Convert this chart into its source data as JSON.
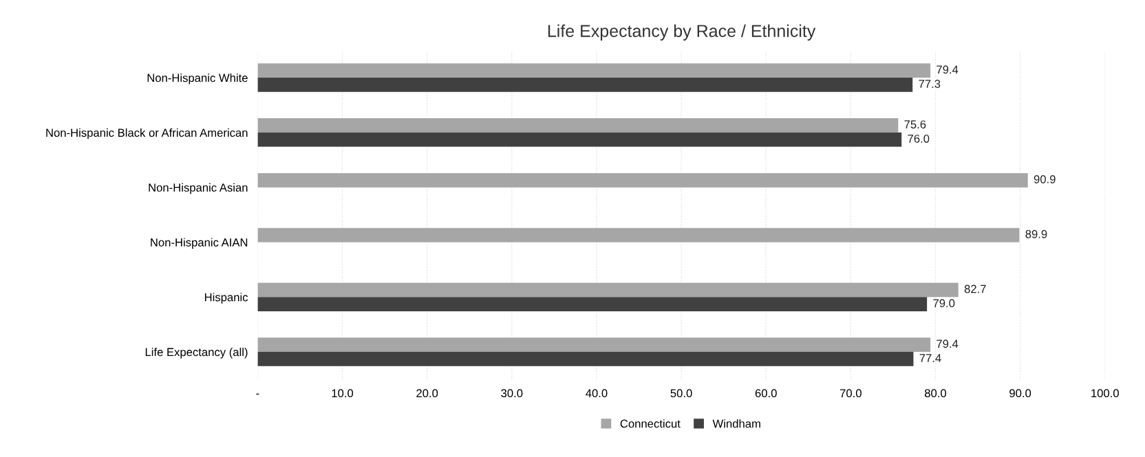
{
  "chart_data": {
    "type": "bar",
    "orientation": "horizontal",
    "title": "Life Expectancy by Race / Ethnicity",
    "categories": [
      "Non-Hispanic White",
      "Non-Hispanic Black or African American",
      "Non-Hispanic Asian",
      "Non-Hispanic AIAN",
      "Hispanic",
      "Life Expectancy (all)"
    ],
    "series": [
      {
        "name": "Connecticut",
        "color": "#a6a6a6",
        "values": [
          79.4,
          75.6,
          90.9,
          89.9,
          82.7,
          79.4
        ],
        "value_labels": [
          "79.4",
          "75.6",
          "90.9",
          "89.9",
          "82.7",
          "79.4"
        ]
      },
      {
        "name": "Windham",
        "color": "#404040",
        "values": [
          77.3,
          76.0,
          null,
          null,
          79.0,
          77.4
        ],
        "value_labels": [
          "77.3",
          "76.0",
          null,
          null,
          "79.0",
          "77.4"
        ]
      }
    ],
    "xlim": [
      0,
      100
    ],
    "xticks": [
      {
        "value": 0,
        "label": "-"
      },
      {
        "value": 10,
        "label": "10.0"
      },
      {
        "value": 20,
        "label": "20.0"
      },
      {
        "value": 30,
        "label": "30.0"
      },
      {
        "value": 40,
        "label": "40.0"
      },
      {
        "value": 50,
        "label": "50.0"
      },
      {
        "value": 60,
        "label": "60.0"
      },
      {
        "value": 70,
        "label": "70.0"
      },
      {
        "value": 80,
        "label": "80.0"
      },
      {
        "value": 90,
        "label": "90.0"
      },
      {
        "value": 100,
        "label": "100.0"
      }
    ],
    "grid": "x",
    "legend": "bottom"
  }
}
